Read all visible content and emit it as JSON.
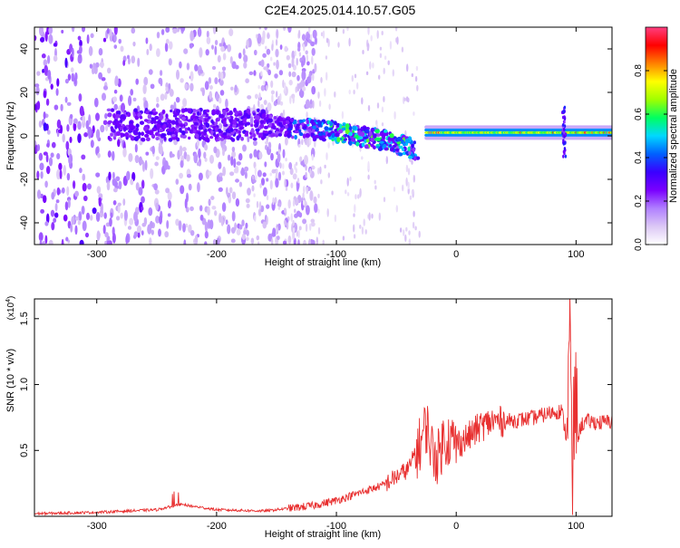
{
  "title": "C2E4.2025.014.10.57.G05",
  "chart_data": [
    {
      "type": "heatmap",
      "xlabel": "Height of straight line (km)",
      "ylabel": "Frequency (Hz)",
      "xlim": [
        -352,
        130
      ],
      "ylim": [
        -50,
        50
      ],
      "x_ticks": [
        {
          "v": -300,
          "label": "-300"
        },
        {
          "v": -200,
          "label": "-200"
        },
        {
          "v": -100,
          "label": "-100"
        },
        {
          "v": 0,
          "label": "0"
        },
        {
          "v": 100,
          "label": "100"
        }
      ],
      "y_ticks": [
        {
          "v": -40,
          "label": "-40"
        },
        {
          "v": -20,
          "label": "-20"
        },
        {
          "v": 0,
          "label": "0"
        },
        {
          "v": 20,
          "label": "20"
        },
        {
          "v": 40,
          "label": "40"
        }
      ],
      "colorbar": {
        "label": "Normalized spectral amplitude",
        "range": [
          0,
          1
        ],
        "ticks": [
          {
            "v": 0.0,
            "label": "0.0"
          },
          {
            "v": 0.2,
            "label": "0.2"
          },
          {
            "v": 0.4,
            "label": "0.4"
          },
          {
            "v": 0.6,
            "label": "0.6"
          },
          {
            "v": 0.8,
            "label": "0.8"
          }
        ],
        "colors": [
          "#ffffff",
          "#dcc8f5",
          "#b080ff",
          "#7a00ff",
          "#3a00ff",
          "#0060ff",
          "#00d8ff",
          "#00ff60",
          "#a0ff00",
          "#ffff00",
          "#ff8000",
          "#ff0000",
          "#ff3f80"
        ]
      },
      "features": [
        {
          "name": "noise",
          "x_range": [
            -352,
            -120
          ],
          "f_range": [
            -50,
            50
          ]
        },
        {
          "name": "sloped-band",
          "x": [
            -260,
            -160,
            -100,
            -60,
            -35
          ],
          "f": [
            5,
            5,
            2,
            -2,
            -6
          ]
        },
        {
          "name": "flat-line",
          "x_range": [
            -25,
            130
          ],
          "f": 1.5
        },
        {
          "name": "spike",
          "x": 90
        }
      ]
    },
    {
      "type": "line",
      "xlabel": "Height of straight line (km)",
      "ylabel": "SNR (10 * v/v)",
      "y_multiplier": "(x10",
      "y_multiplier_exp": "4",
      "y_multiplier_close": ")",
      "xlim": [
        -352,
        130
      ],
      "ylim": [
        0,
        1.65
      ],
      "x_ticks": [
        {
          "v": -300,
          "label": "-300"
        },
        {
          "v": -200,
          "label": "-200"
        },
        {
          "v": -100,
          "label": "-100"
        },
        {
          "v": 0,
          "label": "0"
        },
        {
          "v": 100,
          "label": "100"
        }
      ],
      "y_ticks": [
        {
          "v": 0.5,
          "label": "0.5"
        },
        {
          "v": 1.0,
          "label": "1.0"
        },
        {
          "v": 1.5,
          "label": "1.5"
        }
      ],
      "line_color": "#e83030",
      "series": [
        {
          "x": [
            -352,
            -300,
            -250,
            -230,
            -200,
            -160,
            -140,
            -120,
            -100,
            -80,
            -60,
            -50,
            -40,
            -30,
            -25,
            -20,
            -15,
            -10,
            -5,
            0,
            10,
            20,
            30,
            40,
            50,
            60,
            70,
            80,
            88,
            92,
            95,
            97,
            99,
            101,
            105,
            110,
            120,
            130
          ],
          "y": [
            0.02,
            0.03,
            0.05,
            0.09,
            0.05,
            0.04,
            0.06,
            0.08,
            0.12,
            0.18,
            0.24,
            0.3,
            0.36,
            0.55,
            0.7,
            0.5,
            0.45,
            0.6,
            0.58,
            0.55,
            0.6,
            0.68,
            0.72,
            0.72,
            0.73,
            0.74,
            0.76,
            0.79,
            0.8,
            0.6,
            1.4,
            0.12,
            1.0,
            0.6,
            0.7,
            0.72,
            0.71,
            0.72
          ]
        }
      ]
    }
  ]
}
